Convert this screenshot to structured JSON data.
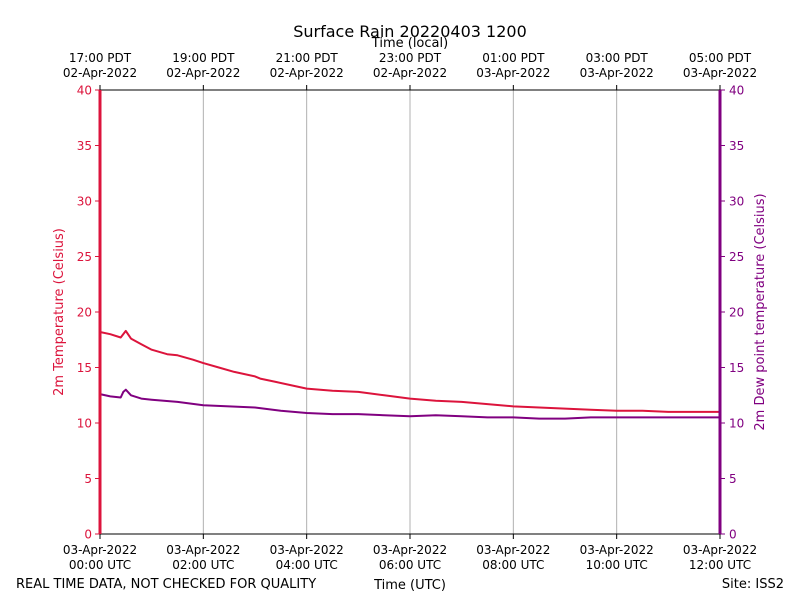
{
  "chart_data": {
    "type": "line",
    "title": "Surface Rain 20220403 1200",
    "top_xlabel": "Time (local)",
    "xlabel": "Time (UTC)",
    "ylabel_left": "2m Temperature (Celsius)",
    "ylabel_right": "2m Dew point temperature (Celsius)",
    "ylim": [
      0,
      40
    ],
    "yticks": [
      0,
      5,
      10,
      15,
      20,
      25,
      30,
      35,
      40
    ],
    "xlim_hours": [
      0,
      12
    ],
    "grid": "vertical",
    "bottom_ticks": [
      {
        "hour": 0,
        "date": "03-Apr-2022",
        "time": "00:00 UTC"
      },
      {
        "hour": 2,
        "date": "03-Apr-2022",
        "time": "02:00 UTC"
      },
      {
        "hour": 4,
        "date": "03-Apr-2022",
        "time": "04:00 UTC"
      },
      {
        "hour": 6,
        "date": "03-Apr-2022",
        "time": "06:00 UTC"
      },
      {
        "hour": 8,
        "date": "03-Apr-2022",
        "time": "08:00 UTC"
      },
      {
        "hour": 10,
        "date": "03-Apr-2022",
        "time": "10:00 UTC"
      },
      {
        "hour": 12,
        "date": "03-Apr-2022",
        "time": "12:00 UTC"
      }
    ],
    "top_ticks": [
      {
        "hour": 0,
        "time": "17:00 PDT",
        "date": "02-Apr-2022"
      },
      {
        "hour": 2,
        "time": "19:00 PDT",
        "date": "02-Apr-2022"
      },
      {
        "hour": 4,
        "time": "21:00 PDT",
        "date": "02-Apr-2022"
      },
      {
        "hour": 6,
        "time": "23:00 PDT",
        "date": "02-Apr-2022"
      },
      {
        "hour": 8,
        "time": "01:00 PDT",
        "date": "03-Apr-2022"
      },
      {
        "hour": 10,
        "time": "03:00 PDT",
        "date": "03-Apr-2022"
      },
      {
        "hour": 12,
        "time": "05:00 PDT",
        "date": "03-Apr-2022"
      }
    ],
    "series": [
      {
        "name": "2m Temperature",
        "axis": "left",
        "color": "#dc143c",
        "points": [
          [
            0.0,
            18.2
          ],
          [
            0.2,
            18.0
          ],
          [
            0.4,
            17.7
          ],
          [
            0.5,
            18.3
          ],
          [
            0.6,
            17.6
          ],
          [
            0.8,
            17.1
          ],
          [
            1.0,
            16.6
          ],
          [
            1.3,
            16.2
          ],
          [
            1.5,
            16.1
          ],
          [
            1.8,
            15.7
          ],
          [
            2.0,
            15.4
          ],
          [
            2.3,
            15.0
          ],
          [
            2.6,
            14.6
          ],
          [
            3.0,
            14.2
          ],
          [
            3.1,
            14.0
          ],
          [
            3.4,
            13.7
          ],
          [
            3.8,
            13.3
          ],
          [
            4.0,
            13.1
          ],
          [
            4.5,
            12.9
          ],
          [
            5.0,
            12.8
          ],
          [
            5.5,
            12.5
          ],
          [
            6.0,
            12.2
          ],
          [
            6.5,
            12.0
          ],
          [
            7.0,
            11.9
          ],
          [
            7.5,
            11.7
          ],
          [
            8.0,
            11.5
          ],
          [
            8.5,
            11.4
          ],
          [
            9.0,
            11.3
          ],
          [
            9.5,
            11.2
          ],
          [
            10.0,
            11.1
          ],
          [
            10.5,
            11.1
          ],
          [
            11.0,
            11.0
          ],
          [
            11.5,
            11.0
          ],
          [
            12.0,
            11.0
          ]
        ]
      },
      {
        "name": "2m Dew point temperature",
        "axis": "right",
        "color": "#800080",
        "points": [
          [
            0.0,
            12.6
          ],
          [
            0.2,
            12.4
          ],
          [
            0.4,
            12.3
          ],
          [
            0.45,
            12.8
          ],
          [
            0.5,
            13.0
          ],
          [
            0.6,
            12.5
          ],
          [
            0.8,
            12.2
          ],
          [
            1.0,
            12.1
          ],
          [
            1.5,
            11.9
          ],
          [
            2.0,
            11.6
          ],
          [
            2.5,
            11.5
          ],
          [
            3.0,
            11.4
          ],
          [
            3.5,
            11.1
          ],
          [
            4.0,
            10.9
          ],
          [
            4.5,
            10.8
          ],
          [
            5.0,
            10.8
          ],
          [
            5.5,
            10.7
          ],
          [
            6.0,
            10.6
          ],
          [
            6.5,
            10.7
          ],
          [
            7.0,
            10.6
          ],
          [
            7.5,
            10.5
          ],
          [
            8.0,
            10.5
          ],
          [
            8.5,
            10.4
          ],
          [
            9.0,
            10.4
          ],
          [
            9.5,
            10.5
          ],
          [
            10.0,
            10.5
          ],
          [
            10.5,
            10.5
          ],
          [
            11.0,
            10.5
          ],
          [
            11.5,
            10.5
          ],
          [
            12.0,
            10.5
          ]
        ]
      }
    ]
  },
  "footer": {
    "left_note": "REAL TIME DATA, NOT CHECKED FOR QUALITY",
    "site": "Site: ISS2"
  },
  "colors": {
    "temperature_axis": "#dc143c",
    "dewpoint_axis": "#800080",
    "grid": "#b0b0b0"
  }
}
